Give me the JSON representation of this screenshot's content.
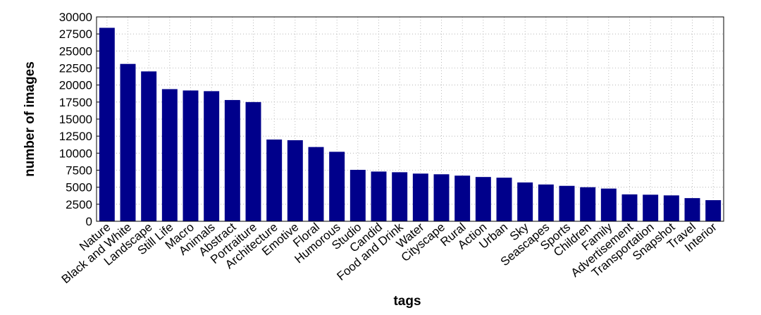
{
  "chart_data": {
    "type": "bar",
    "x_label": "tags",
    "y_label": "number of images",
    "categories": [
      "Nature",
      "Black and White",
      "Landscape",
      "Still Life",
      "Macro",
      "Animals",
      "Abstract",
      "Portraiture",
      "Architecture",
      "Emotive",
      "Floral",
      "Humorous",
      "Studio",
      "Candid",
      "Food and Drink",
      "Water",
      "Cityscape",
      "Rural",
      "Action",
      "Urban",
      "Sky",
      "Seascapes",
      "Sports",
      "Children",
      "Family",
      "Advertisement",
      "Transportation",
      "Snapshot",
      "Travel",
      "Interior"
    ],
    "values": [
      28400,
      23100,
      22000,
      19400,
      19200,
      19100,
      17800,
      17500,
      12000,
      11900,
      10900,
      10200,
      7550,
      7300,
      7200,
      7000,
      6900,
      6700,
      6500,
      6400,
      5700,
      5400,
      5200,
      5000,
      4800,
      3950,
      3900,
      3800,
      3400,
      3100
    ],
    "color": "#00008b",
    "ylim": [
      0,
      30000
    ],
    "yticks": [
      0,
      2500,
      5000,
      7500,
      10000,
      12500,
      15000,
      17500,
      20000,
      22500,
      25000,
      27500,
      30000
    ],
    "grid": true
  }
}
